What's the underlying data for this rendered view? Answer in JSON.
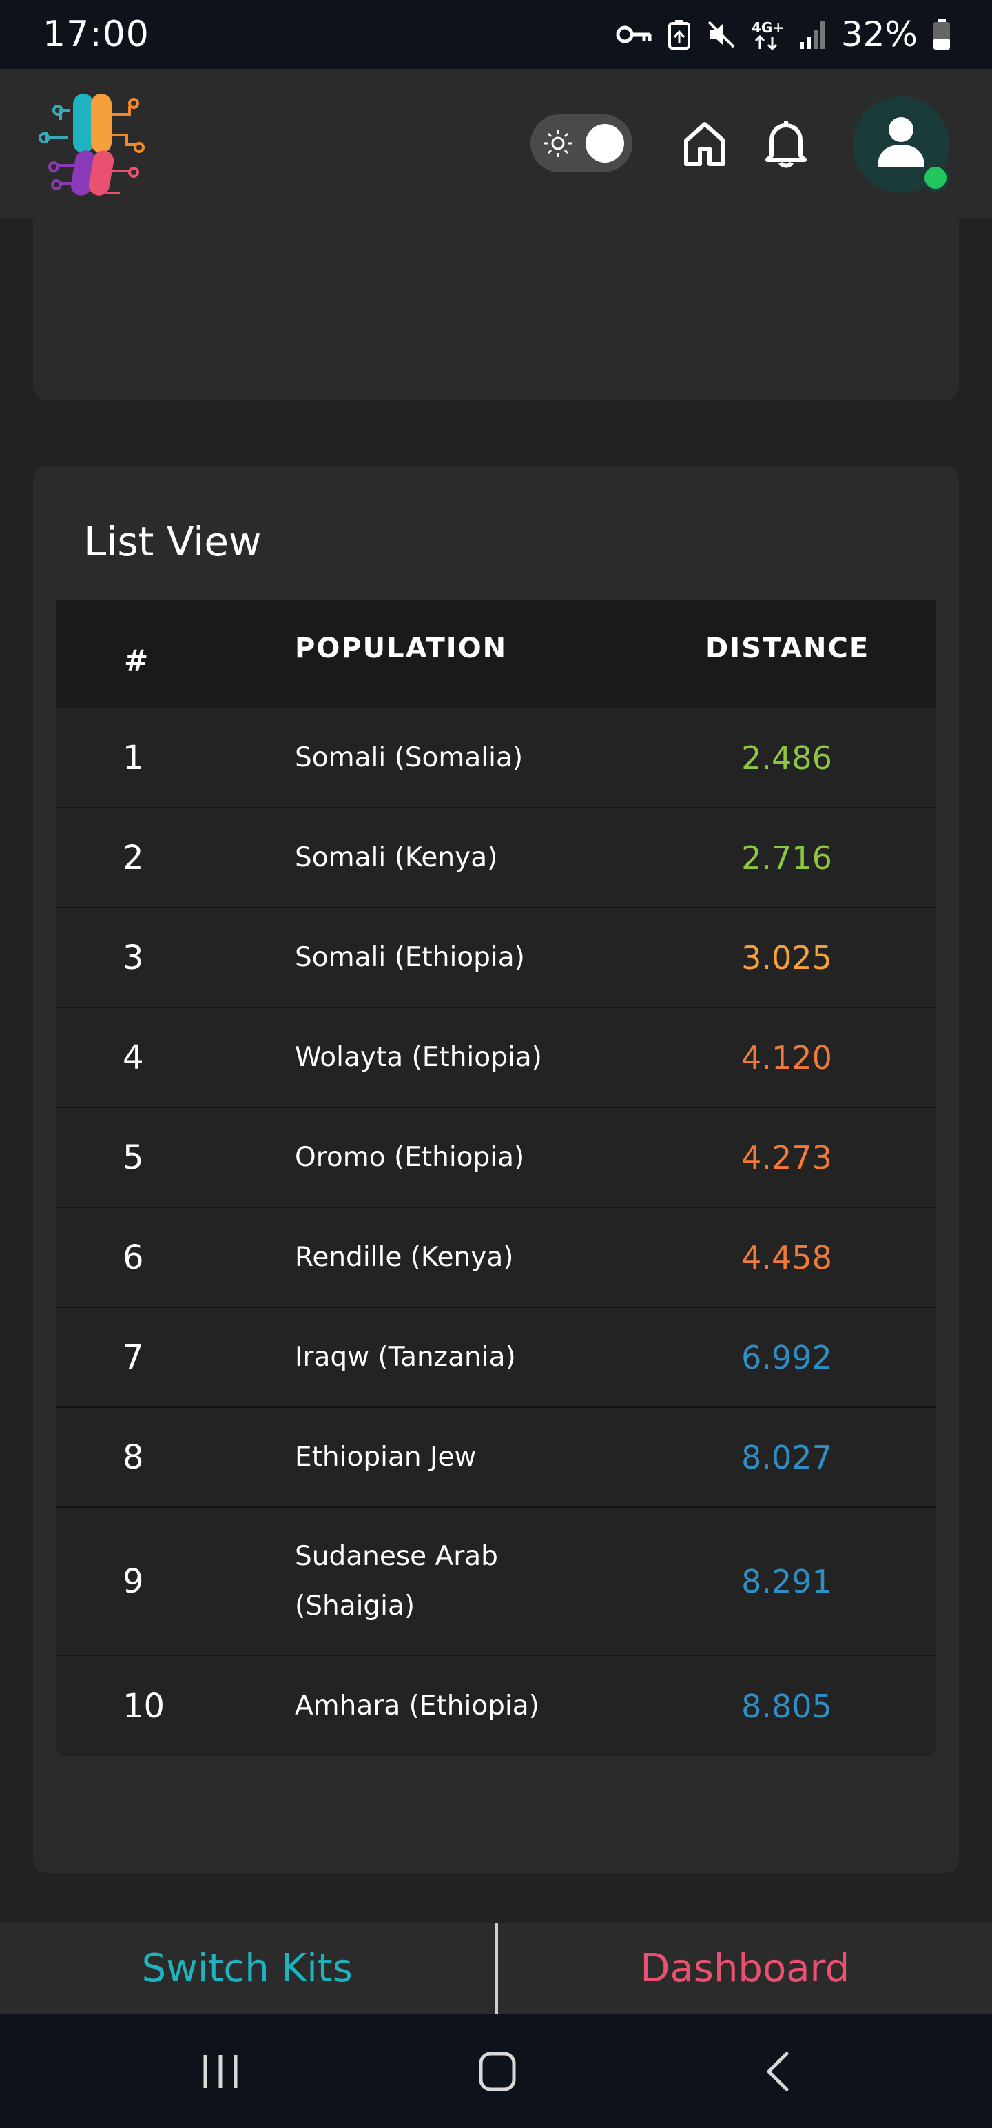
{
  "status_bar": {
    "time": "17:00",
    "battery": "32%",
    "network": "4G+",
    "icons": [
      "key-icon",
      "battery-saver-icon",
      "mute-icon",
      "network-4g-icon",
      "signal-icon",
      "battery-icon"
    ]
  },
  "header": {
    "logo": "app-logo",
    "theme_toggle_icon": "sun-icon",
    "home_icon": "home-icon",
    "bell_icon": "bell-icon",
    "avatar_icon": "user-icon",
    "status_color": "#22c55e"
  },
  "list_view": {
    "title": "List View",
    "columns": {
      "num": "#",
      "population": "POPULATION",
      "distance": "DISTANCE"
    },
    "rows": [
      {
        "num": "1",
        "population": "Somali (Somalia)",
        "distance": "2.486",
        "color": "#8dc63f"
      },
      {
        "num": "2",
        "population": "Somali (Kenya)",
        "distance": "2.716",
        "color": "#8dc63f"
      },
      {
        "num": "3",
        "population": "Somali (Ethiopia)",
        "distance": "3.025",
        "color": "#f5a03a"
      },
      {
        "num": "4",
        "population": "Wolayta (Ethiopia)",
        "distance": "4.120",
        "color": "#f07a3a"
      },
      {
        "num": "5",
        "population": "Oromo (Ethiopia)",
        "distance": "4.273",
        "color": "#f07a3a"
      },
      {
        "num": "6",
        "population": "Rendille (Kenya)",
        "distance": "4.458",
        "color": "#f07a3a"
      },
      {
        "num": "7",
        "population": "Iraqw (Tanzania)",
        "distance": "6.992",
        "color": "#2f8fc4"
      },
      {
        "num": "8",
        "population": "Ethiopian Jew",
        "distance": "8.027",
        "color": "#2f8fc4"
      },
      {
        "num": "9",
        "population": "Sudanese Arab (Shaigia)",
        "distance": "8.291",
        "color": "#2f8fc4"
      },
      {
        "num": "10",
        "population": "Amhara (Ethiopia)",
        "distance": "8.805",
        "color": "#2f8fc4"
      }
    ]
  },
  "actions": {
    "switch_kits": "Switch Kits",
    "switch_kits_color": "#1fb3bf",
    "dashboard": "Dashboard",
    "dashboard_color": "#e8516f"
  },
  "nav": {
    "recents_icon": "recents-icon",
    "home_icon": "nav-home-icon",
    "back_icon": "back-icon"
  }
}
